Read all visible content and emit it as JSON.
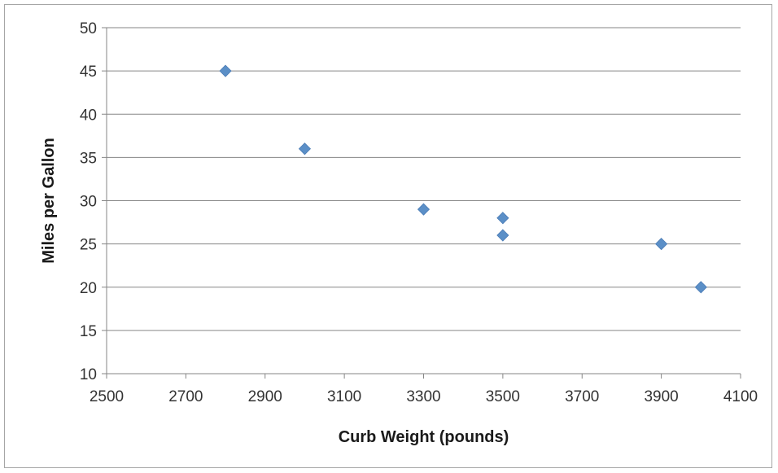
{
  "chart_data": {
    "type": "scatter",
    "title": "",
    "xlabel": "Curb Weight (pounds)",
    "ylabel": "Miles per Gallon",
    "xlim": [
      2500,
      4100
    ],
    "ylim": [
      10,
      50
    ],
    "x_ticks": [
      2500,
      2700,
      2900,
      3100,
      3300,
      3500,
      3700,
      3900,
      4100
    ],
    "y_ticks": [
      10,
      15,
      20,
      25,
      30,
      35,
      40,
      45,
      50
    ],
    "grid": "horizontal",
    "legend": "none",
    "marker": "diamond",
    "series": [
      {
        "color": "#5b8fc7",
        "points": [
          {
            "x": 2800,
            "y": 45
          },
          {
            "x": 3000,
            "y": 36
          },
          {
            "x": 3300,
            "y": 29
          },
          {
            "x": 3500,
            "y": 28
          },
          {
            "x": 3500,
            "y": 26
          },
          {
            "x": 3900,
            "y": 25
          },
          {
            "x": 4000,
            "y": 20
          }
        ]
      }
    ]
  }
}
